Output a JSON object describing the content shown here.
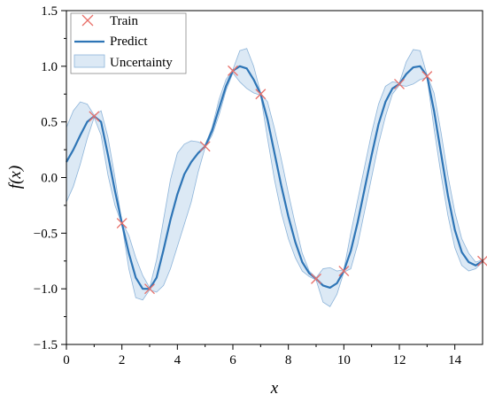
{
  "chart_data": {
    "type": "line",
    "xlabel": "x",
    "ylabel": "f(x)",
    "xlim": [
      0,
      15
    ],
    "ylim": [
      -1.5,
      1.5
    ],
    "x_ticks": [
      0,
      2,
      4,
      6,
      8,
      10,
      12,
      14
    ],
    "y_ticks": [
      -1.5,
      -1.0,
      -0.5,
      0.0,
      0.5,
      1.0,
      1.5
    ],
    "x_tick_labels": [
      "0",
      "2",
      "4",
      "6",
      "8",
      "10",
      "12",
      "14"
    ],
    "y_tick_labels": [
      "−1.5",
      "−1.0",
      "−0.5",
      "0.0",
      "0.5",
      "1.0",
      "1.5"
    ],
    "grid": false,
    "legend_position": "top-left",
    "colors": {
      "predict": "#2e75b6",
      "band_fill": "#dce9f5",
      "band_edge": "#8db4d9",
      "train": "#e8706a"
    },
    "series": [
      {
        "name": "Train",
        "type": "scatter",
        "x": [
          1,
          2,
          3,
          5,
          6,
          7,
          9,
          10,
          12,
          13,
          15
        ],
        "y": [
          0.55,
          -0.41,
          -1.0,
          0.28,
          0.96,
          0.75,
          -0.91,
          -0.84,
          0.84,
          0.91,
          -0.75
        ]
      },
      {
        "name": "Predict",
        "type": "line",
        "x": [
          0,
          0.25,
          0.5,
          0.75,
          1.0,
          1.25,
          1.5,
          1.75,
          2.0,
          2.25,
          2.5,
          2.75,
          3.0,
          3.25,
          3.5,
          3.75,
          4.0,
          4.25,
          4.5,
          4.75,
          5.0,
          5.25,
          5.5,
          5.75,
          6.0,
          6.25,
          6.5,
          6.75,
          7.0,
          7.25,
          7.5,
          7.75,
          8.0,
          8.25,
          8.5,
          8.75,
          9.0,
          9.25,
          9.5,
          9.75,
          10.0,
          10.25,
          10.5,
          10.75,
          11.0,
          11.25,
          11.5,
          11.75,
          12.0,
          12.25,
          12.5,
          12.75,
          13.0,
          13.25,
          13.5,
          13.75,
          14.0,
          14.25,
          14.5,
          14.75,
          15.0
        ],
        "y": [
          0.14,
          0.25,
          0.38,
          0.5,
          0.55,
          0.5,
          0.2,
          -0.12,
          -0.41,
          -0.68,
          -0.9,
          -1.0,
          -1.0,
          -0.9,
          -0.65,
          -0.38,
          -0.15,
          0.03,
          0.14,
          0.22,
          0.28,
          0.42,
          0.62,
          0.82,
          0.96,
          1.0,
          0.98,
          0.88,
          0.75,
          0.52,
          0.22,
          -0.08,
          -0.35,
          -0.58,
          -0.76,
          -0.86,
          -0.91,
          -0.97,
          -0.99,
          -0.95,
          -0.84,
          -0.66,
          -0.4,
          -0.1,
          0.2,
          0.48,
          0.68,
          0.8,
          0.84,
          0.93,
          0.99,
          1.0,
          0.91,
          0.6,
          0.22,
          -0.16,
          -0.47,
          -0.67,
          -0.76,
          -0.79,
          -0.75
        ]
      },
      {
        "name": "Uncertainty",
        "type": "area",
        "x": [
          0,
          0.25,
          0.5,
          0.75,
          1.0,
          1.25,
          1.5,
          1.75,
          2.0,
          2.25,
          2.5,
          2.75,
          3.0,
          3.25,
          3.5,
          3.75,
          4.0,
          4.25,
          4.5,
          4.75,
          5.0,
          5.25,
          5.5,
          5.75,
          6.0,
          6.25,
          6.5,
          6.75,
          7.0,
          7.25,
          7.5,
          7.75,
          8.0,
          8.25,
          8.5,
          8.75,
          9.0,
          9.25,
          9.5,
          9.75,
          10.0,
          10.25,
          10.5,
          10.75,
          11.0,
          11.25,
          11.5,
          11.75,
          12.0,
          12.25,
          12.5,
          12.75,
          13.0,
          13.25,
          13.5,
          13.75,
          14.0,
          14.25,
          14.5,
          14.75,
          15.0
        ],
        "lower": [
          -0.22,
          -0.08,
          0.12,
          0.35,
          0.54,
          0.38,
          0.02,
          -0.25,
          -0.42,
          -0.82,
          -1.08,
          -1.1,
          -1.01,
          -1.03,
          -0.97,
          -0.82,
          -0.62,
          -0.42,
          -0.22,
          0.05,
          0.27,
          0.38,
          0.56,
          0.78,
          0.94,
          0.86,
          0.8,
          0.76,
          0.74,
          0.35,
          -0.02,
          -0.32,
          -0.55,
          -0.72,
          -0.84,
          -0.89,
          -0.92,
          -1.12,
          -1.16,
          -1.05,
          -0.85,
          -0.82,
          -0.6,
          -0.3,
          0.0,
          0.3,
          0.55,
          0.75,
          0.83,
          0.82,
          0.84,
          0.88,
          0.9,
          0.44,
          0.03,
          -0.34,
          -0.63,
          -0.79,
          -0.84,
          -0.82,
          -0.76
        ],
        "upper": [
          0.45,
          0.6,
          0.68,
          0.66,
          0.56,
          0.6,
          0.36,
          0.0,
          -0.4,
          -0.52,
          -0.72,
          -0.88,
          -0.99,
          -0.74,
          -0.38,
          -0.02,
          0.22,
          0.3,
          0.33,
          0.32,
          0.29,
          0.45,
          0.7,
          0.88,
          0.97,
          1.14,
          1.16,
          1.0,
          0.76,
          0.68,
          0.44,
          0.16,
          -0.14,
          -0.42,
          -0.68,
          -0.84,
          -0.9,
          -0.82,
          -0.81,
          -0.84,
          -0.83,
          -0.5,
          -0.2,
          0.1,
          0.4,
          0.66,
          0.82,
          0.86,
          0.85,
          1.04,
          1.15,
          1.14,
          0.92,
          0.76,
          0.41,
          0.02,
          -0.31,
          -0.55,
          -0.68,
          -0.76,
          -0.74
        ]
      }
    ]
  }
}
